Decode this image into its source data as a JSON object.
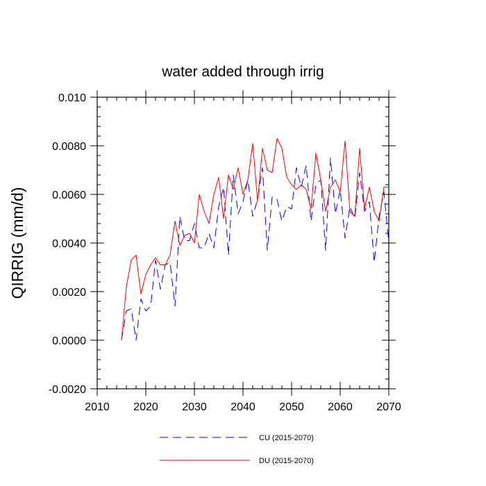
{
  "chart_data": {
    "type": "line",
    "title": "water added through irrig",
    "xlabel": "",
    "ylabel": "QIRRIG  (mm/d)",
    "xlim": [
      2010,
      2070
    ],
    "ylim": [
      -0.002,
      0.01
    ],
    "x_ticks": [
      2010,
      2020,
      2030,
      2040,
      2050,
      2060,
      2070
    ],
    "x_tick_labels": [
      "2010",
      "2020",
      "2030",
      "2040",
      "2050",
      "2060",
      "2070"
    ],
    "y_ticks": [
      -0.002,
      0.0,
      0.002,
      0.004,
      0.006,
      0.008,
      0.01
    ],
    "y_tick_labels": [
      "-0.0020",
      "0.0000",
      "0.0020",
      "0.0040",
      "0.0060",
      "0.0080",
      "0.010"
    ],
    "legend_position": "bottom",
    "series": [
      {
        "name": "CU (2015-2070)",
        "color": "#0000ff",
        "style": "dashed",
        "x": [
          2015,
          2016,
          2017,
          2018,
          2019,
          2020,
          2021,
          2022,
          2023,
          2024,
          2025,
          2026,
          2027,
          2028,
          2029,
          2030,
          2031,
          2032,
          2033,
          2034,
          2035,
          2036,
          2037,
          2038,
          2039,
          2040,
          2041,
          2042,
          2043,
          2044,
          2045,
          2046,
          2047,
          2048,
          2049,
          2050,
          2051,
          2052,
          2053,
          2054,
          2055,
          2056,
          2057,
          2058,
          2059,
          2060,
          2061,
          2062,
          2063,
          2064,
          2065,
          2066,
          2067,
          2068,
          2069,
          2070
        ],
        "values": [
          0.0,
          0.0012,
          0.0013,
          0.0,
          0.0017,
          0.0012,
          0.0014,
          0.0033,
          0.0021,
          0.0031,
          0.0032,
          0.0014,
          0.0051,
          0.0041,
          0.0041,
          0.0048,
          0.0038,
          0.0038,
          0.0044,
          0.0038,
          0.0055,
          0.0063,
          0.0035,
          0.0068,
          0.0052,
          0.0057,
          0.0066,
          0.0051,
          0.0058,
          0.0071,
          0.0037,
          0.0059,
          0.0058,
          0.0049,
          0.0055,
          0.0054,
          0.0071,
          0.0063,
          0.0072,
          0.0049,
          0.0064,
          0.0066,
          0.0037,
          0.0075,
          0.0052,
          0.0062,
          0.0042,
          0.0055,
          0.005,
          0.0069,
          0.0053,
          0.0057,
          0.0032,
          0.0051,
          0.0061,
          0.004
        ]
      },
      {
        "name": "DU (2015-2070)",
        "color": "#ff0000",
        "style": "solid",
        "x": [
          2015,
          2016,
          2017,
          2018,
          2019,
          2020,
          2021,
          2022,
          2023,
          2024,
          2025,
          2026,
          2027,
          2028,
          2029,
          2030,
          2031,
          2032,
          2033,
          2034,
          2035,
          2036,
          2037,
          2038,
          2039,
          2040,
          2041,
          2042,
          2043,
          2044,
          2045,
          2046,
          2047,
          2048,
          2049,
          2050,
          2051,
          2052,
          2053,
          2054,
          2055,
          2056,
          2057,
          2058,
          2059,
          2060,
          2061,
          2062,
          2063,
          2064,
          2065,
          2066,
          2067,
          2068,
          2069,
          2070
        ],
        "values": [
          0.0,
          0.0022,
          0.0033,
          0.0035,
          0.0019,
          0.0027,
          0.0031,
          0.0034,
          0.0031,
          0.0031,
          0.0035,
          0.0049,
          0.0039,
          0.0043,
          0.0044,
          0.004,
          0.006,
          0.0053,
          0.0048,
          0.006,
          0.0067,
          0.005,
          0.0068,
          0.0062,
          0.0071,
          0.006,
          0.0066,
          0.0081,
          0.0057,
          0.0079,
          0.007,
          0.0069,
          0.0083,
          0.0079,
          0.0067,
          0.0064,
          0.0062,
          0.0064,
          0.0062,
          0.0054,
          0.0077,
          0.0066,
          0.0053,
          0.0063,
          0.0066,
          0.0061,
          0.0082,
          0.0053,
          0.0051,
          0.0079,
          0.0054,
          0.0063,
          0.0053,
          0.0049,
          0.0063,
          0.0063
        ]
      }
    ]
  }
}
